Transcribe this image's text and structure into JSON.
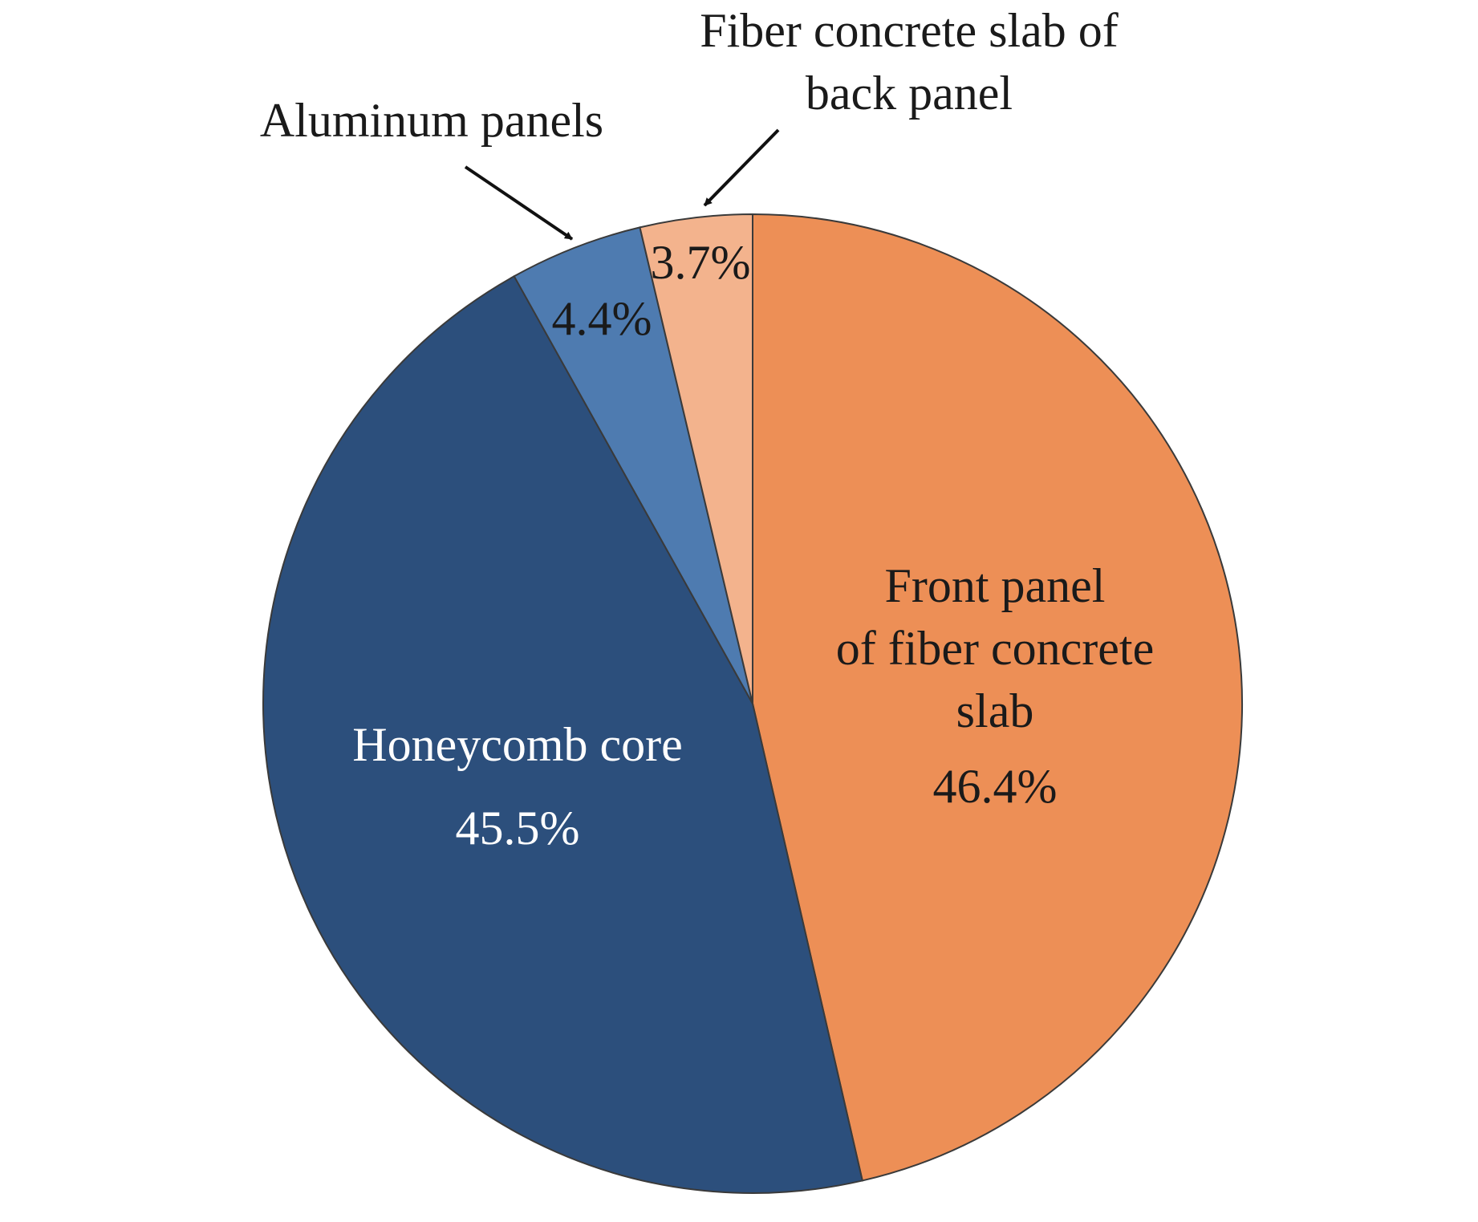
{
  "chart_data": {
    "type": "pie",
    "title": "",
    "slices": [
      {
        "label": "Front panel of fiber concrete slab",
        "label_lines": [
          "Front panel",
          "of fiber concrete",
          "slab"
        ],
        "value": 46.4,
        "value_text": "46.4%",
        "color": "#ED8F56",
        "text_color": "#1a1a1a"
      },
      {
        "label": "Honeycomb core",
        "label_lines": [
          "Honeycomb core"
        ],
        "value": 45.5,
        "value_text": "45.5%",
        "color": "#2C4F7C",
        "text_color": "#ffffff"
      },
      {
        "label": "Aluminum panels",
        "label_lines": [
          "Aluminum panels"
        ],
        "value": 4.4,
        "value_text": "4.4%",
        "color": "#4E7BB0",
        "text_color": "#1a1a1a"
      },
      {
        "label": "Fiber concrete slab of back panel",
        "label_lines": [
          "Fiber concrete slab of",
          "back panel"
        ],
        "value": 3.7,
        "value_text": "3.7%",
        "color": "#F3B38D",
        "text_color": "#1a1a1a"
      }
    ],
    "start_angle": "12 o'clock",
    "direction": "clockwise"
  }
}
